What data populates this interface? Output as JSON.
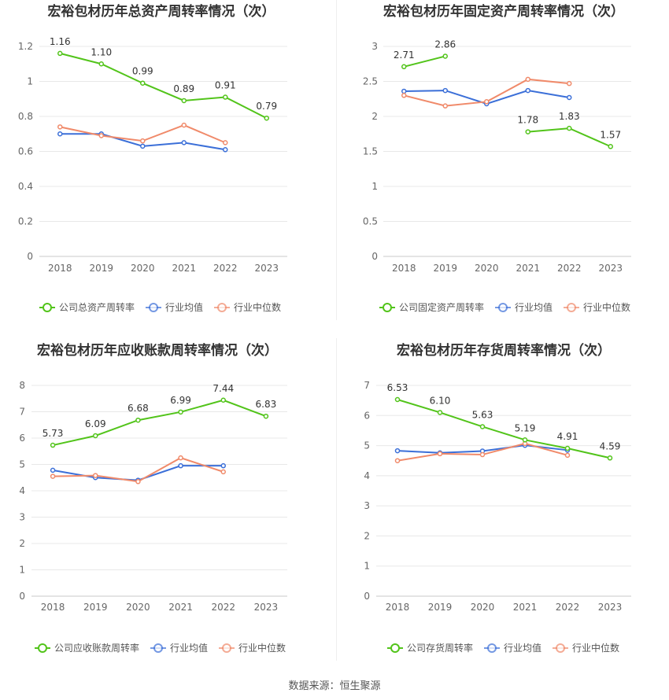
{
  "colors": {
    "company": "#52c41a",
    "avg": "#3b6fd8",
    "median": "#f08a6a",
    "grid": "#e8e8e8",
    "axis_text": "#666666",
    "title": "#333333"
  },
  "footer": "数据来源：恒生聚源",
  "chart_data": [
    {
      "type": "line",
      "title": "宏裕包材历年总资产周转率情况（次）",
      "categories": [
        "2018",
        "2019",
        "2020",
        "2021",
        "2022",
        "2023"
      ],
      "ylim": [
        0,
        1.2
      ],
      "yticks": [
        "0",
        "0.2",
        "0.4",
        "0.6",
        "0.8",
        "1",
        "1.2"
      ],
      "series": [
        {
          "name": "公司总资产周转率",
          "role": "company",
          "values": [
            1.16,
            1.1,
            0.99,
            0.89,
            0.91,
            0.79
          ],
          "labels": [
            "1.16",
            "1.10",
            "0.99",
            "0.89",
            "0.91",
            "0.79"
          ]
        },
        {
          "name": "行业均值",
          "role": "avg",
          "values": [
            0.7,
            0.7,
            0.63,
            0.65,
            0.61,
            null
          ]
        },
        {
          "name": "行业中位数",
          "role": "median",
          "values": [
            0.74,
            0.69,
            0.66,
            0.75,
            0.65,
            null
          ]
        }
      ],
      "legend": "bottom"
    },
    {
      "type": "line",
      "title": "宏裕包材历年固定资产周转率情况（次）",
      "categories": [
        "2018",
        "2019",
        "2020",
        "2021",
        "2022",
        "2023"
      ],
      "ylim": [
        0,
        3
      ],
      "yticks": [
        "0",
        "0.5",
        "1",
        "1.5",
        "2",
        "2.5",
        "3"
      ],
      "series": [
        {
          "name": "公司固定资产周转率",
          "role": "company",
          "values": [
            2.71,
            2.86,
            null,
            1.78,
            1.83,
            1.57
          ],
          "labels": [
            "2.71",
            "2.86",
            "",
            "1.78",
            "1.83",
            "1.57"
          ]
        },
        {
          "name": "行业均值",
          "role": "avg",
          "values": [
            2.36,
            2.37,
            2.18,
            2.37,
            2.27,
            null
          ]
        },
        {
          "name": "行业中位数",
          "role": "median",
          "values": [
            2.3,
            2.15,
            2.21,
            2.53,
            2.47,
            null
          ]
        }
      ],
      "legend": "bottom"
    },
    {
      "type": "line",
      "title": "宏裕包材历年应收账款周转率情况（次）",
      "categories": [
        "2018",
        "2019",
        "2020",
        "2021",
        "2022",
        "2023"
      ],
      "ylim": [
        0,
        8
      ],
      "yticks": [
        "0",
        "1",
        "2",
        "3",
        "4",
        "5",
        "6",
        "7",
        "8"
      ],
      "series": [
        {
          "name": "公司应收账款周转率",
          "role": "company",
          "values": [
            5.73,
            6.09,
            6.68,
            6.99,
            7.44,
            6.83
          ],
          "labels": [
            "5.73",
            "6.09",
            "6.68",
            "6.99",
            "7.44",
            "6.83"
          ]
        },
        {
          "name": "行业均值",
          "role": "avg",
          "values": [
            4.78,
            4.5,
            4.4,
            4.95,
            4.95,
            null
          ]
        },
        {
          "name": "行业中位数",
          "role": "median",
          "values": [
            4.55,
            4.58,
            4.35,
            5.25,
            4.72,
            null
          ]
        }
      ],
      "legend": "bottom"
    },
    {
      "type": "line",
      "title": "宏裕包材历年存货周转率情况（次）",
      "categories": [
        "2018",
        "2019",
        "2020",
        "2021",
        "2022",
        "2023"
      ],
      "ylim": [
        0,
        7
      ],
      "yticks": [
        "0",
        "1",
        "2",
        "3",
        "4",
        "5",
        "6",
        "7"
      ],
      "series": [
        {
          "name": "公司存货周转率",
          "role": "company",
          "values": [
            6.53,
            6.1,
            5.63,
            5.19,
            4.91,
            4.59
          ],
          "labels": [
            "6.53",
            "6.10",
            "5.63",
            "5.19",
            "4.91",
            "4.59"
          ]
        },
        {
          "name": "行业均值",
          "role": "avg",
          "values": [
            4.83,
            4.76,
            4.82,
            5.01,
            4.85,
            null
          ]
        },
        {
          "name": "行业中位数",
          "role": "median",
          "values": [
            4.5,
            4.73,
            4.7,
            5.07,
            4.68,
            null
          ]
        }
      ],
      "legend": "bottom"
    }
  ]
}
